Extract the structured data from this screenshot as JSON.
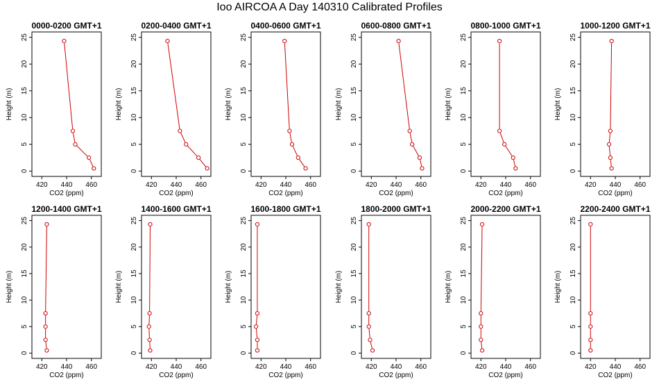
{
  "page": {
    "title": "Ioo AIRCOA A  Day 140310  Calibrated Profiles"
  },
  "chart_data": [
    {
      "type": "line",
      "title": "0000-0200 GMT+1",
      "xlabel": "CO2 (ppm)",
      "ylabel": "Height (m)",
      "xlim": [
        412,
        468
      ],
      "ylim": [
        -1,
        26
      ],
      "xticks": [
        420,
        440,
        460
      ],
      "yticks": [
        0,
        5,
        10,
        15,
        20,
        25
      ],
      "series": [
        {
          "x": [
            438,
            445,
            447,
            458,
            462
          ],
          "y": [
            24.3,
            7.5,
            5,
            2.5,
            0.5
          ],
          "color": "#cc0000"
        }
      ]
    },
    {
      "type": "line",
      "title": "0200-0400 GMT+1",
      "xlabel": "CO2 (ppm)",
      "ylabel": "Height (m)",
      "xlim": [
        412,
        468
      ],
      "ylim": [
        -1,
        26
      ],
      "xticks": [
        420,
        440,
        460
      ],
      "yticks": [
        0,
        5,
        10,
        15,
        20,
        25
      ],
      "series": [
        {
          "x": [
            433,
            443,
            448,
            458,
            465
          ],
          "y": [
            24.3,
            7.5,
            5,
            2.5,
            0.5
          ],
          "color": "#cc0000"
        }
      ]
    },
    {
      "type": "line",
      "title": "0400-0600 GMT+1",
      "xlabel": "CO2 (ppm)",
      "ylabel": "Height (m)",
      "xlim": [
        412,
        468
      ],
      "ylim": [
        -1,
        26
      ],
      "xticks": [
        420,
        440,
        460
      ],
      "yticks": [
        0,
        5,
        10,
        15,
        20,
        25
      ],
      "series": [
        {
          "x": [
            439,
            443,
            445,
            450,
            456
          ],
          "y": [
            24.3,
            7.5,
            5,
            2.5,
            0.5
          ],
          "color": "#cc0000"
        }
      ]
    },
    {
      "type": "line",
      "title": "0600-0800 GMT+1",
      "xlabel": "CO2 (ppm)",
      "ylabel": "Height (m)",
      "xlim": [
        412,
        468
      ],
      "ylim": [
        -1,
        26
      ],
      "xticks": [
        420,
        440,
        460
      ],
      "yticks": [
        0,
        5,
        10,
        15,
        20,
        25
      ],
      "series": [
        {
          "x": [
            442,
            451,
            453,
            459,
            461
          ],
          "y": [
            24.3,
            7.5,
            5,
            2.5,
            0.5
          ],
          "color": "#cc0000"
        }
      ]
    },
    {
      "type": "line",
      "title": "0800-1000 GMT+1",
      "xlabel": "CO2 (ppm)",
      "ylabel": "Height (m)",
      "xlim": [
        412,
        468
      ],
      "ylim": [
        -1,
        26
      ],
      "xticks": [
        420,
        440,
        460
      ],
      "yticks": [
        0,
        5,
        10,
        15,
        20,
        25
      ],
      "series": [
        {
          "x": [
            435,
            435,
            439,
            446,
            448
          ],
          "y": [
            24.3,
            7.5,
            5,
            2.5,
            0.5
          ],
          "color": "#cc0000"
        }
      ]
    },
    {
      "type": "line",
      "title": "1000-1200 GMT+1",
      "xlabel": "CO2 (ppm)",
      "ylabel": "Height (m)",
      "xlim": [
        412,
        468
      ],
      "ylim": [
        -1,
        26
      ],
      "xticks": [
        420,
        440,
        460
      ],
      "yticks": [
        0,
        5,
        10,
        15,
        20,
        25
      ],
      "series": [
        {
          "x": [
            437,
            436,
            435,
            436,
            437
          ],
          "y": [
            24.3,
            7.5,
            5,
            2.5,
            0.5
          ],
          "color": "#cc0000"
        }
      ]
    },
    {
      "type": "line",
      "title": "1200-1400 GMT+1",
      "xlabel": "CO2 (ppm)",
      "ylabel": "Height (m)",
      "xlim": [
        412,
        468
      ],
      "ylim": [
        -1,
        26
      ],
      "xticks": [
        420,
        440,
        460
      ],
      "yticks": [
        0,
        5,
        10,
        15,
        20,
        25
      ],
      "series": [
        {
          "x": [
            424,
            423,
            423,
            423,
            424
          ],
          "y": [
            24.3,
            7.5,
            5,
            2.5,
            0.5
          ],
          "color": "#cc0000"
        }
      ]
    },
    {
      "type": "line",
      "title": "1400-1600 GMT+1",
      "xlabel": "CO2 (ppm)",
      "ylabel": "Height (m)",
      "xlim": [
        412,
        468
      ],
      "ylim": [
        -1,
        26
      ],
      "xticks": [
        420,
        440,
        460
      ],
      "yticks": [
        0,
        5,
        10,
        15,
        20,
        25
      ],
      "series": [
        {
          "x": [
            419,
            418.5,
            418,
            418.5,
            419
          ],
          "y": [
            24.3,
            7.5,
            5,
            2.5,
            0.5
          ],
          "color": "#cc0000"
        }
      ]
    },
    {
      "type": "line",
      "title": "1600-1800 GMT+1",
      "xlabel": "CO2 (ppm)",
      "ylabel": "Height (m)",
      "xlim": [
        412,
        468
      ],
      "ylim": [
        -1,
        26
      ],
      "xticks": [
        420,
        440,
        460
      ],
      "yticks": [
        0,
        5,
        10,
        15,
        20,
        25
      ],
      "series": [
        {
          "x": [
            417,
            417,
            416,
            417,
            417
          ],
          "y": [
            24.3,
            7.5,
            5,
            2.5,
            0.5
          ],
          "color": "#cc0000"
        }
      ]
    },
    {
      "type": "line",
      "title": "1800-2000 GMT+1",
      "xlabel": "CO2 (ppm)",
      "ylabel": "Height (m)",
      "xlim": [
        412,
        468
      ],
      "ylim": [
        -1,
        26
      ],
      "xticks": [
        420,
        440,
        460
      ],
      "yticks": [
        0,
        5,
        10,
        15,
        20,
        25
      ],
      "series": [
        {
          "x": [
            418,
            418,
            418,
            419,
            421
          ],
          "y": [
            24.3,
            7.5,
            5,
            2.5,
            0.5
          ],
          "color": "#cc0000"
        }
      ]
    },
    {
      "type": "line",
      "title": "2000-2200 GMT+1",
      "xlabel": "CO2 (ppm)",
      "ylabel": "Height (m)",
      "xlim": [
        412,
        468
      ],
      "ylim": [
        -1,
        26
      ],
      "xticks": [
        420,
        440,
        460
      ],
      "yticks": [
        0,
        5,
        10,
        15,
        20,
        25
      ],
      "series": [
        {
          "x": [
            421,
            420,
            420,
            420,
            421
          ],
          "y": [
            24.3,
            7.5,
            5,
            2.5,
            0.5
          ],
          "color": "#cc0000"
        }
      ]
    },
    {
      "type": "line",
      "title": "2200-2400 GMT+1",
      "xlabel": "CO2 (ppm)",
      "ylabel": "Height (m)",
      "xlim": [
        412,
        468
      ],
      "ylim": [
        -1,
        26
      ],
      "xticks": [
        420,
        440,
        460
      ],
      "yticks": [
        0,
        5,
        10,
        15,
        20,
        25
      ],
      "series": [
        {
          "x": [
            420,
            420,
            420,
            420,
            420
          ],
          "y": [
            24.3,
            7.5,
            5,
            2.5,
            0.5
          ],
          "color": "#cc0000"
        }
      ]
    }
  ]
}
